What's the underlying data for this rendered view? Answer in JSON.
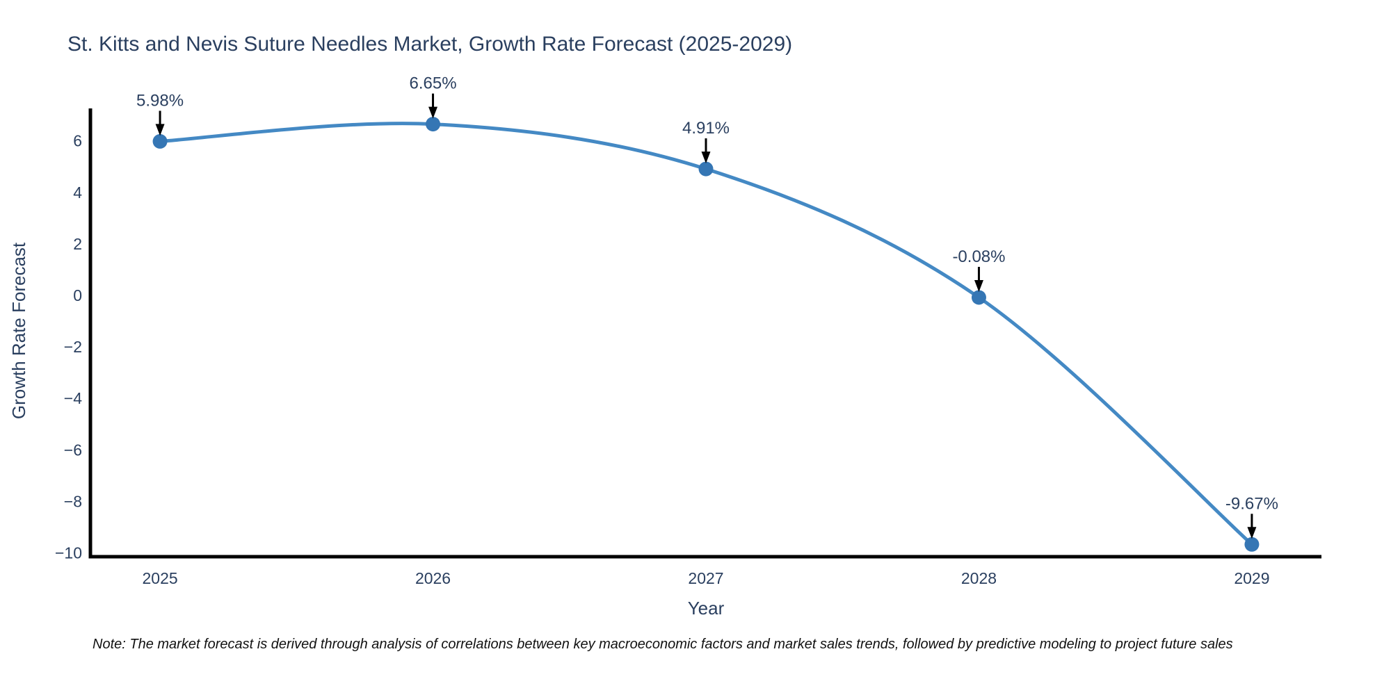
{
  "title": {
    "text": "St. Kitts and Nevis Suture Needles Market, Growth Rate Forecast (2025-2029)"
  },
  "note": {
    "text": "Note: The market forecast is derived through analysis of correlations between key macroeconomic factors and market sales trends, followed by predictive modeling to project future sales"
  },
  "chart_data": {
    "type": "line",
    "title": "St. Kitts and Nevis Suture Needles Market, Growth Rate Forecast (2025-2029)",
    "xlabel": "Year",
    "ylabel": "Growth Rate Forecast",
    "x": [
      2025,
      2026,
      2027,
      2028,
      2029
    ],
    "series": [
      {
        "name": "Growth Rate Forecast",
        "values": [
          5.98,
          6.65,
          4.91,
          -0.08,
          -9.67
        ]
      }
    ],
    "point_labels": [
      "5.98%",
      "6.65%",
      "4.91%",
      "-0.08%",
      "-9.67%"
    ],
    "xtick_labels": [
      "2025",
      "2026",
      "2027",
      "2028",
      "2029"
    ],
    "ytick_values": [
      6,
      4,
      2,
      0,
      -2,
      -4,
      -6,
      -8,
      -10
    ],
    "ytick_labels": [
      "6",
      "4",
      "2",
      "0",
      "−2",
      "−4",
      "−6",
      "−8",
      "−10"
    ],
    "xlim": [
      2024.745,
      2029.255
    ],
    "ylim": [
      -10.202,
      7.206
    ],
    "grid": false,
    "legend": false,
    "line_shape": "spline",
    "marker": "circle",
    "annotations": "percent value label with downward black arrow above each data point",
    "colors": {
      "line": "#4489c4",
      "marker": "#3576b4",
      "axis": "#000000",
      "text": "#2a3f5f",
      "arrow": "#000000",
      "note": "#111111",
      "background": "#ffffff"
    }
  }
}
